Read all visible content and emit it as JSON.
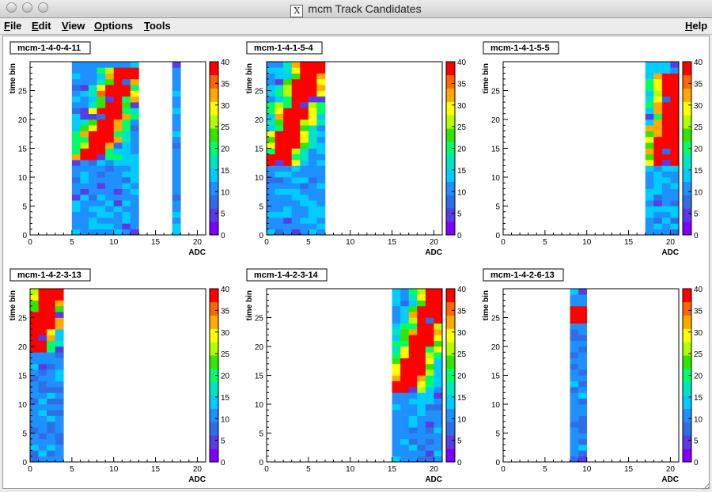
{
  "window": {
    "title": "mcm Track Candidates",
    "x_glyph": "X"
  },
  "menubar": {
    "items": [
      {
        "name": "file",
        "label": "File",
        "mnemonic": "F",
        "rest": "ile"
      },
      {
        "name": "edit",
        "label": "Edit",
        "mnemonic": "E",
        "rest": "dit"
      },
      {
        "name": "view",
        "label": "View",
        "mnemonic": "V",
        "rest": "iew"
      },
      {
        "name": "options",
        "label": "Options",
        "mnemonic": "O",
        "rest": "ptions"
      },
      {
        "name": "tools",
        "label": "Tools",
        "mnemonic": "T",
        "rest": "ools"
      }
    ],
    "help": {
      "label": "Help",
      "mnemonic": "H",
      "rest": "elp"
    }
  },
  "colors": {
    "palette": [
      "#8000ff",
      "#5a3ce6",
      "#2f6fe6",
      "#1f90ff",
      "#00ccff",
      "#00e6c0",
      "#00ff66",
      "#33e600",
      "#b3ff00",
      "#ffff00",
      "#ffaa00",
      "#ff6600",
      "#ff0000"
    ],
    "empty_bin": "#ffffff",
    "frame": "#000000"
  },
  "chart_data": [
    {
      "type": "heatmap",
      "title": "mcm-1-4-0-4-11",
      "xlabel": "ADC",
      "ylabel": "time bin",
      "xlim": [
        0,
        21
      ],
      "ylim": [
        0,
        30
      ],
      "x_ticks": [
        0,
        5,
        10,
        15,
        20
      ],
      "y_ticks": [
        0,
        5,
        10,
        15,
        20,
        25
      ],
      "z_range": [
        0,
        40
      ],
      "z_ticks": [
        0,
        5,
        10,
        15,
        20,
        25,
        30,
        35,
        40
      ],
      "occupied_x_ranges": [
        [
          5,
          12
        ],
        [
          17,
          17
        ]
      ],
      "high_band": {
        "start": [
          7,
          13
        ],
        "end": [
          11,
          28
        ]
      },
      "low_value": 11
    },
    {
      "type": "heatmap",
      "title": "mcm-1-4-1-5-4",
      "xlabel": "ADC",
      "ylabel": "time bin",
      "xlim": [
        0,
        21
      ],
      "ylim": [
        0,
        30
      ],
      "x_ticks": [
        0,
        5,
        10,
        15,
        20
      ],
      "y_ticks": [
        0,
        5,
        10,
        15,
        20,
        25
      ],
      "z_range": [
        0,
        40
      ],
      "z_ticks": [
        0,
        5,
        10,
        15,
        20,
        25,
        30,
        35,
        40
      ],
      "occupied_x_ranges": [
        [
          0,
          6
        ]
      ],
      "high_band": {
        "start": [
          1,
          12
        ],
        "end": [
          5,
          29
        ]
      },
      "low_value": 11
    },
    {
      "type": "heatmap",
      "title": "mcm-1-4-1-5-5",
      "xlabel": "ADC",
      "ylabel": "time bin",
      "xlim": [
        0,
        21
      ],
      "ylim": [
        0,
        30
      ],
      "x_ticks": [
        0,
        5,
        10,
        15,
        20
      ],
      "y_ticks": [
        0,
        5,
        10,
        15,
        20,
        25
      ],
      "z_range": [
        0,
        40
      ],
      "z_ticks": [
        0,
        5,
        10,
        15,
        20,
        25,
        30,
        35,
        40
      ],
      "occupied_x_ranges": [
        [
          17,
          20
        ]
      ],
      "high_band": {
        "start": [
          19,
          12
        ],
        "end": [
          20,
          27
        ]
      },
      "low_value": 11
    },
    {
      "type": "heatmap",
      "title": "mcm-1-4-2-3-13",
      "xlabel": "ADC",
      "ylabel": "time bin",
      "xlim": [
        0,
        21
      ],
      "ylim": [
        0,
        30
      ],
      "x_ticks": [
        0,
        5,
        10,
        15,
        20
      ],
      "y_ticks": [
        0,
        5,
        10,
        15,
        20,
        25
      ],
      "z_range": [
        0,
        40
      ],
      "z_ticks": [
        0,
        5,
        10,
        15,
        20,
        25,
        30,
        35,
        40
      ],
      "occupied_x_ranges": [
        [
          0,
          3
        ]
      ],
      "high_band": {
        "start": [
          0,
          19
        ],
        "end": [
          2,
          29
        ]
      },
      "low_value": 10
    },
    {
      "type": "heatmap",
      "title": "mcm-1-4-2-3-14",
      "xlabel": "ADC",
      "ylabel": "time bin",
      "xlim": [
        0,
        21
      ],
      "ylim": [
        0,
        30
      ],
      "x_ticks": [
        0,
        5,
        10,
        15,
        20
      ],
      "y_ticks": [
        0,
        5,
        10,
        15,
        20,
        25
      ],
      "z_range": [
        0,
        40
      ],
      "z_ticks": [
        0,
        5,
        10,
        15,
        20,
        25,
        30,
        35,
        40
      ],
      "occupied_x_ranges": [
        [
          15,
          20
        ]
      ],
      "high_band": {
        "start": [
          16,
          12
        ],
        "end": [
          20,
          29
        ]
      },
      "low_value": 11
    },
    {
      "type": "heatmap",
      "title": "mcm-1-4-2-6-13",
      "xlabel": "ADC",
      "ylabel": "time bin",
      "xlim": [
        0,
        21
      ],
      "ylim": [
        0,
        30
      ],
      "x_ticks": [
        0,
        5,
        10,
        15,
        20
      ],
      "y_ticks": [
        0,
        5,
        10,
        15,
        20,
        25
      ],
      "z_range": [
        0,
        40
      ],
      "z_ticks": [
        0,
        5,
        10,
        15,
        20,
        25,
        30,
        35,
        40
      ],
      "occupied_x_ranges": [
        [
          8,
          9
        ]
      ],
      "high_band": {
        "start": [
          8,
          24
        ],
        "end": [
          9,
          26
        ]
      },
      "low_value": 10
    }
  ]
}
